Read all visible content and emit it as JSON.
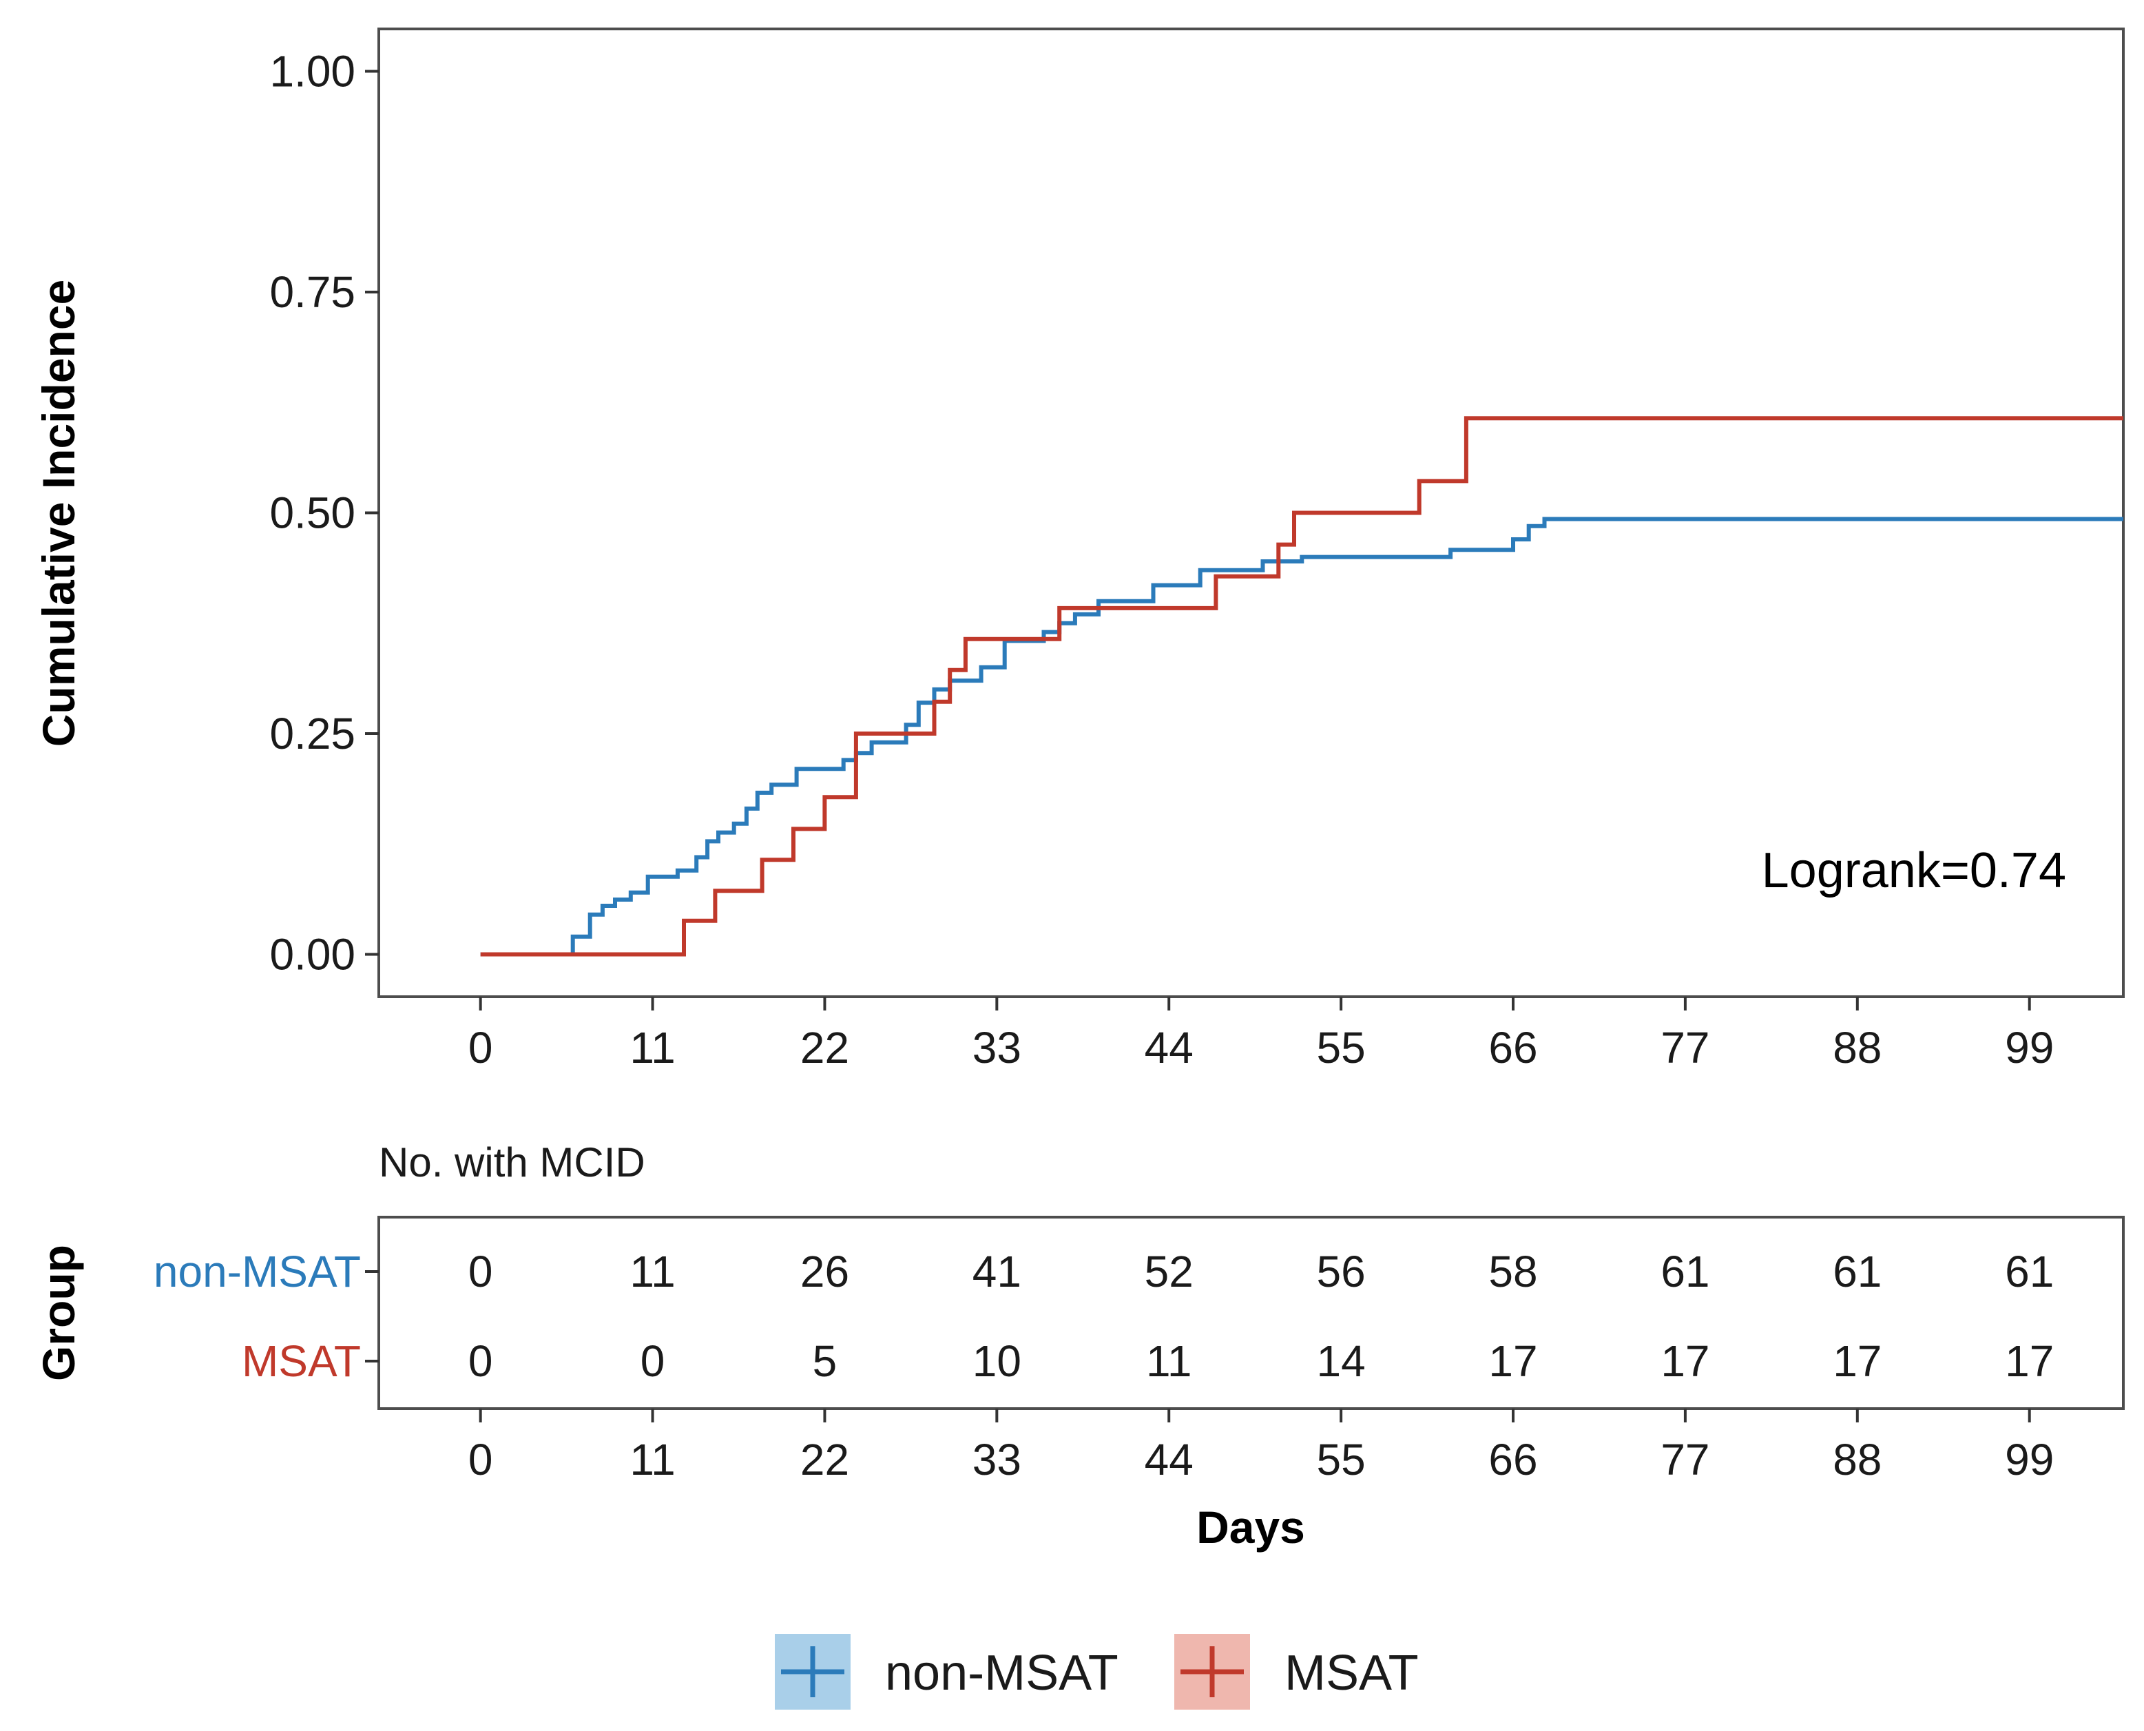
{
  "colors": {
    "non_msat": "#2b7bba",
    "msat": "#c0392b",
    "non_msat_fill": "#a9cfe9",
    "msat_fill": "#efb7ae"
  },
  "chart_data": [
    {
      "type": "line",
      "subtype": "step",
      "ylabel": "Cumulative Incidence",
      "xlabel": "",
      "xlim": [
        -6.5,
        105
      ],
      "ylim": [
        -0.048,
        1.048
      ],
      "xticks": [
        "0",
        "11",
        "22",
        "33",
        "44",
        "55",
        "66",
        "77",
        "88",
        "99"
      ],
      "yticks": [
        "0.00",
        "0.25",
        "0.50",
        "0.75",
        "1.00"
      ],
      "grid": false,
      "annotation": "Logrank=0.74",
      "series": [
        {
          "name": "non-MSAT",
          "color_key": "non_msat",
          "points": [
            [
              0,
              0
            ],
            [
              5.9,
              0
            ],
            [
              5.9,
              0.02
            ],
            [
              7,
              0.02
            ],
            [
              7,
              0.045
            ],
            [
              7.8,
              0.045
            ],
            [
              7.8,
              0.055
            ],
            [
              8.6,
              0.055
            ],
            [
              8.6,
              0.062
            ],
            [
              9.6,
              0.062
            ],
            [
              9.6,
              0.07
            ],
            [
              10.7,
              0.07
            ],
            [
              10.7,
              0.088
            ],
            [
              12.6,
              0.088
            ],
            [
              12.6,
              0.095
            ],
            [
              13.8,
              0.095
            ],
            [
              13.8,
              0.11
            ],
            [
              14.5,
              0.11
            ],
            [
              14.5,
              0.128
            ],
            [
              15.2,
              0.128
            ],
            [
              15.2,
              0.138
            ],
            [
              16.2,
              0.138
            ],
            [
              16.2,
              0.148
            ],
            [
              17,
              0.148
            ],
            [
              17,
              0.165
            ],
            [
              17.7,
              0.165
            ],
            [
              17.7,
              0.183
            ],
            [
              18.6,
              0.183
            ],
            [
              18.6,
              0.192
            ],
            [
              20.2,
              0.192
            ],
            [
              20.2,
              0.21
            ],
            [
              23.2,
              0.21
            ],
            [
              23.2,
              0.22
            ],
            [
              24,
              0.22
            ],
            [
              24,
              0.228
            ],
            [
              25,
              0.228
            ],
            [
              25,
              0.24
            ],
            [
              27.2,
              0.24
            ],
            [
              27.2,
              0.26
            ],
            [
              28,
              0.26
            ],
            [
              28,
              0.285
            ],
            [
              29,
              0.285
            ],
            [
              29,
              0.3
            ],
            [
              30,
              0.3
            ],
            [
              30,
              0.31
            ],
            [
              32,
              0.31
            ],
            [
              32,
              0.325
            ],
            [
              33.5,
              0.325
            ],
            [
              33.5,
              0.355
            ],
            [
              36,
              0.355
            ],
            [
              36,
              0.365
            ],
            [
              37,
              0.365
            ],
            [
              37,
              0.375
            ],
            [
              38,
              0.375
            ],
            [
              38,
              0.385
            ],
            [
              39.5,
              0.385
            ],
            [
              39.5,
              0.4
            ],
            [
              43,
              0.4
            ],
            [
              43,
              0.418
            ],
            [
              46,
              0.418
            ],
            [
              46,
              0.435
            ],
            [
              50,
              0.435
            ],
            [
              50,
              0.445
            ],
            [
              52.5,
              0.445
            ],
            [
              52.5,
              0.45
            ],
            [
              62,
              0.45
            ],
            [
              62,
              0.458
            ],
            [
              66,
              0.458
            ],
            [
              66,
              0.47
            ],
            [
              67,
              0.47
            ],
            [
              67,
              0.485
            ],
            [
              68,
              0.485
            ],
            [
              68,
              0.493
            ],
            [
              105,
              0.493
            ]
          ]
        },
        {
          "name": "MSAT",
          "color_key": "msat",
          "points": [
            [
              0,
              0
            ],
            [
              13,
              0
            ],
            [
              13,
              0.038
            ],
            [
              15,
              0.038
            ],
            [
              15,
              0.072
            ],
            [
              18,
              0.072
            ],
            [
              18,
              0.107
            ],
            [
              20,
              0.107
            ],
            [
              20,
              0.142
            ],
            [
              22,
              0.142
            ],
            [
              22,
              0.178
            ],
            [
              24,
              0.178
            ],
            [
              24,
              0.25
            ],
            [
              29,
              0.25
            ],
            [
              29,
              0.286
            ],
            [
              30,
              0.286
            ],
            [
              30,
              0.322
            ],
            [
              31,
              0.322
            ],
            [
              31,
              0.357
            ],
            [
              37,
              0.357
            ],
            [
              37,
              0.392
            ],
            [
              47,
              0.392
            ],
            [
              47,
              0.428
            ],
            [
              51,
              0.428
            ],
            [
              51,
              0.464
            ],
            [
              52,
              0.464
            ],
            [
              52,
              0.5
            ],
            [
              60,
              0.5
            ],
            [
              60,
              0.536
            ],
            [
              63,
              0.536
            ],
            [
              63,
              0.607
            ],
            [
              105,
              0.607
            ]
          ]
        }
      ]
    },
    {
      "type": "table",
      "title": "No. with MCID",
      "xlabel": "Days",
      "ylabel": "Group",
      "xlim": [
        -6.5,
        105
      ],
      "xticks": [
        "0",
        "11",
        "22",
        "33",
        "44",
        "55",
        "66",
        "77",
        "88",
        "99"
      ],
      "rows": [
        {
          "name": "non-MSAT",
          "color_key": "non_msat",
          "values": [
            "0",
            "11",
            "26",
            "41",
            "52",
            "56",
            "58",
            "61",
            "61",
            "61"
          ]
        },
        {
          "name": "MSAT",
          "color_key": "msat",
          "values": [
            "0",
            "0",
            "5",
            "10",
            "11",
            "14",
            "17",
            "17",
            "17",
            "17"
          ]
        }
      ]
    }
  ],
  "legend": {
    "placement": "bottom",
    "items": [
      {
        "label": "non-MSAT",
        "color_key": "non_msat",
        "fill_key": "non_msat_fill"
      },
      {
        "label": "MSAT",
        "color_key": "msat",
        "fill_key": "msat_fill"
      }
    ]
  }
}
